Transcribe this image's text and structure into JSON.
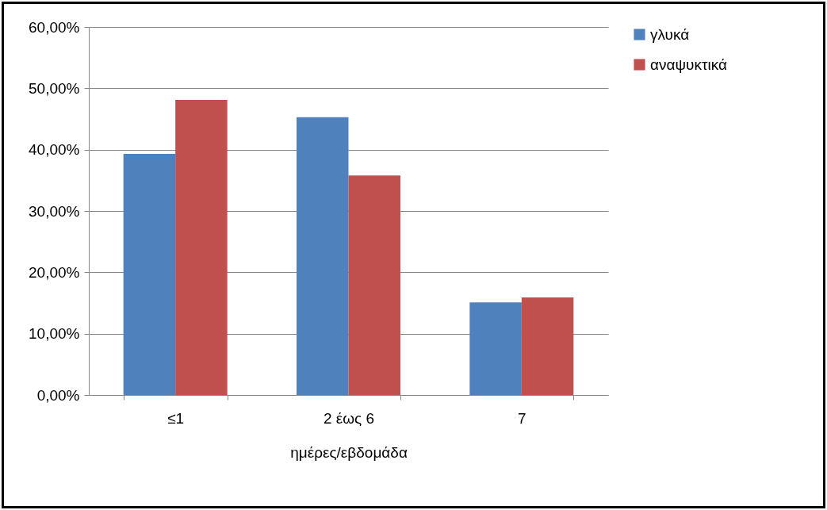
{
  "chart_data": {
    "type": "bar",
    "xlabel": "ημέρες/εβδομάδα",
    "categories": [
      "≤1",
      "2 έως 6",
      "7"
    ],
    "series": [
      {
        "name": "γλυκά",
        "color": "#4f81bd",
        "values": [
          39.3,
          45.3,
          15.1
        ]
      },
      {
        "name": "αναψυκτικά",
        "color": "#c0504d",
        "values": [
          48.1,
          35.8,
          15.9
        ]
      }
    ],
    "ylim": [
      0,
      60
    ],
    "yticks": [
      {
        "value": 0,
        "label": "0,00%"
      },
      {
        "value": 10,
        "label": "10,00%"
      },
      {
        "value": 20,
        "label": "20,00%"
      },
      {
        "value": 30,
        "label": "30,00%"
      },
      {
        "value": 40,
        "label": "40,00%"
      },
      {
        "value": 50,
        "label": "50,00%"
      },
      {
        "value": 60,
        "label": "60,00%"
      }
    ],
    "grid": "y",
    "legend": "right"
  }
}
